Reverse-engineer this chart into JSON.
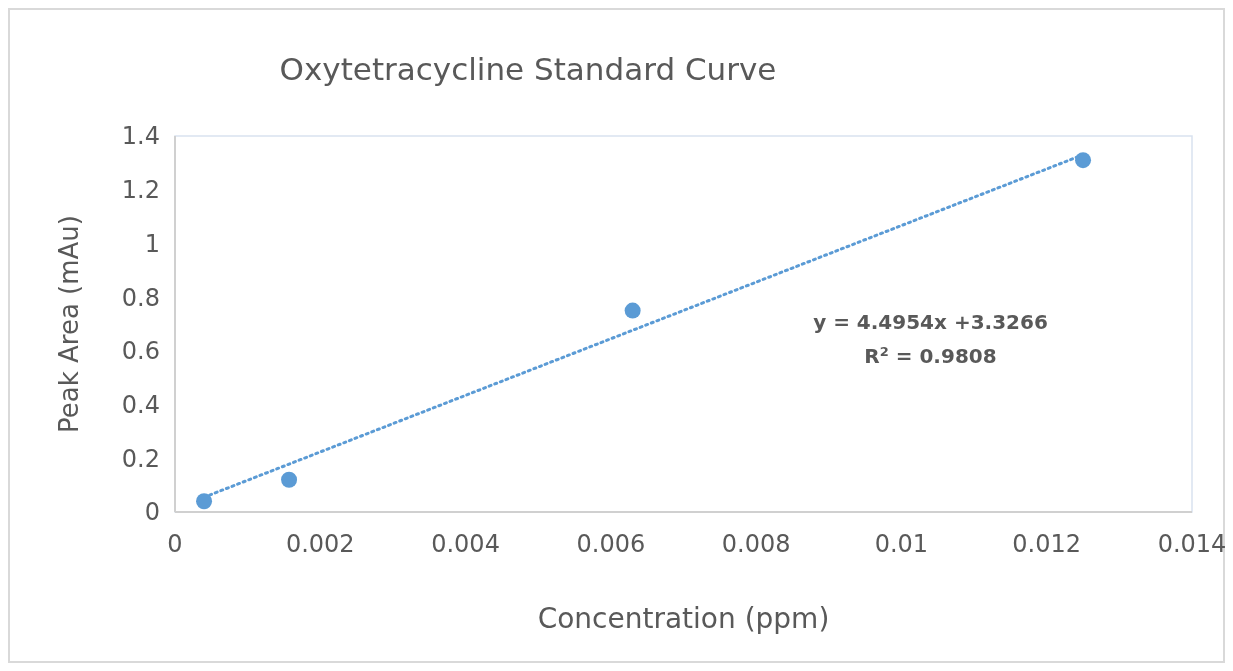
{
  "chart_data": {
    "type": "scatter",
    "title": "Oxytetracycline Standard Curve",
    "xlabel": "Concentration (ppm)",
    "ylabel": "Peak Area (mAu)",
    "xlim": [
      0,
      0.014
    ],
    "xticks": [
      0,
      0.002,
      0.004,
      0.006,
      0.008,
      0.01,
      0.012,
      0.014
    ],
    "ylim": [
      0,
      1.4
    ],
    "yticks": [
      0,
      0.2,
      0.4,
      0.6,
      0.8,
      1,
      1.2,
      1.4
    ],
    "marker": "circle",
    "grid": false,
    "series": [
      {
        "color": "#5b9bd5",
        "x": [
          0.0004,
          0.00157,
          0.0063,
          0.0125
        ],
        "values": [
          0.04,
          0.12,
          0.75,
          1.31
        ]
      },
      {
        "type": "line",
        "color": "#5b9bd5",
        "line_style": "dotted",
        "marker": "none",
        "x": [
          0.0004,
          0.0125
        ],
        "values": [
          0.055,
          1.33
        ]
      }
    ],
    "annotations": [
      "y = 4.4954x +3.3266",
      "R$^{2}$ = 0.9808"
    ]
  }
}
